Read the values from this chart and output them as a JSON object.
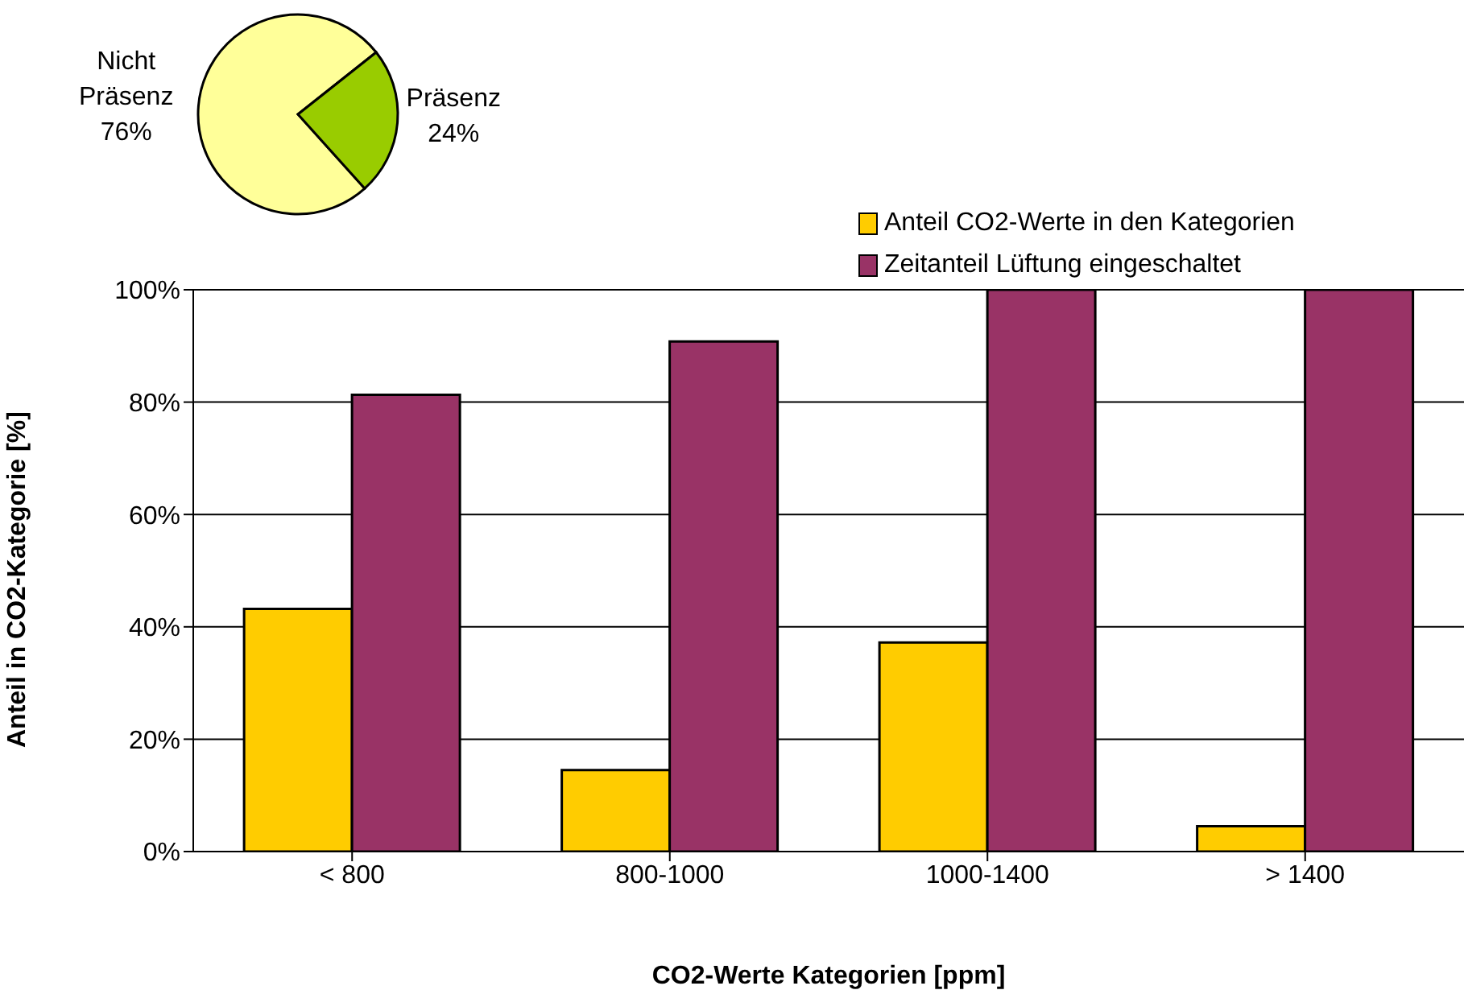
{
  "chart_data": [
    {
      "type": "pie",
      "categories": [
        "Nicht Präsenz",
        "Präsenz"
      ],
      "values": [
        76,
        24
      ],
      "colors": [
        "#ffff99",
        "#99cc00"
      ],
      "value_labels": [
        "76%",
        "24%"
      ]
    },
    {
      "type": "bar",
      "xlabel": "CO2-Werte Kategorien [ppm]",
      "ylabel": "Anteil in CO2-Kategorie [%]",
      "categories": [
        "< 800",
        "800-1000",
        "1000-1400",
        "> 1400"
      ],
      "series": [
        {
          "name": "Anteil CO2-Werte in den Kategorien",
          "color": "#ffcc00",
          "values": [
            43.2,
            14.5,
            37.2,
            4.5
          ]
        },
        {
          "name": "Zeitanteil Lüftung eingeschaltet",
          "color": "#993366",
          "values": [
            81.3,
            90.8,
            100,
            100
          ]
        }
      ],
      "ylim": [
        0,
        100
      ],
      "yticks": [
        {
          "value": 0,
          "label": "0%"
        },
        {
          "value": 20,
          "label": "20%"
        },
        {
          "value": 40,
          "label": "40%"
        },
        {
          "value": 60,
          "label": "60%"
        },
        {
          "value": 80,
          "label": "80%"
        },
        {
          "value": 100,
          "label": "100%"
        }
      ],
      "grid": "y",
      "legend": "top right"
    }
  ]
}
